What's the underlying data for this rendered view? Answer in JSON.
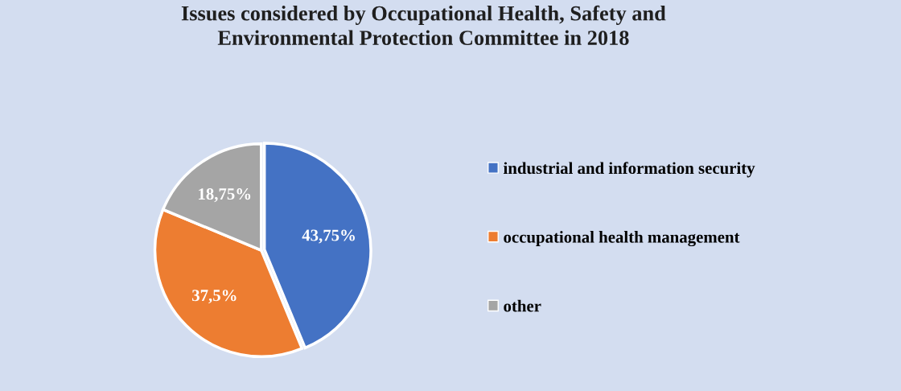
{
  "chart_data": {
    "type": "pie",
    "title": "Issues considered by Occupational Health, Safety and\nEnvironmental Protection Committee in 2018",
    "categories": [
      "industrial and information security",
      "occupational health management",
      "other"
    ],
    "values": [
      43.75,
      37.5,
      18.75
    ],
    "colors": [
      "#4472c4",
      "#ed7d31",
      "#a5a5a5"
    ],
    "value_labels": [
      "43,75%",
      "37,5%",
      "18,75%"
    ],
    "legend": "right"
  }
}
